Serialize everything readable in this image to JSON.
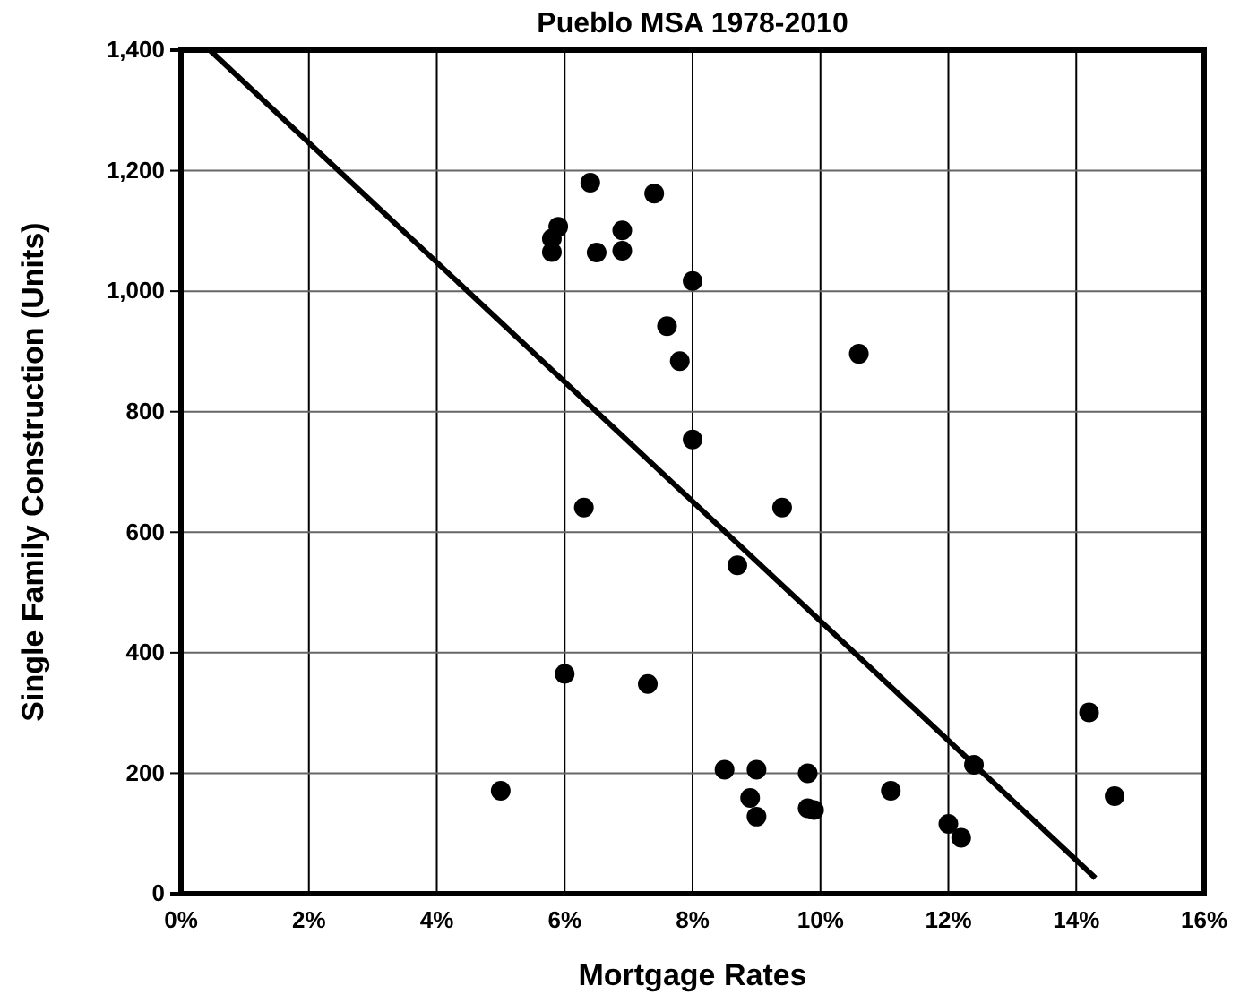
{
  "chart_data": {
    "type": "scatter",
    "title": "Pueblo MSA 1978-2010",
    "xlabel": "Mortgage Rates",
    "ylabel": "Single Family Construction (Units)",
    "xlim": [
      0,
      16
    ],
    "ylim": [
      0,
      1400
    ],
    "xticks": [
      {
        "value": 0,
        "label": "0%"
      },
      {
        "value": 2,
        "label": "2%"
      },
      {
        "value": 4,
        "label": "4%"
      },
      {
        "value": 6,
        "label": "6%"
      },
      {
        "value": 8,
        "label": "8%"
      },
      {
        "value": 10,
        "label": "10%"
      },
      {
        "value": 12,
        "label": "12%"
      },
      {
        "value": 14,
        "label": "14%"
      },
      {
        "value": 16,
        "label": "16%"
      }
    ],
    "yticks": [
      0,
      200,
      400,
      600,
      800,
      {
        "value": 1000,
        "label": "1,000"
      },
      {
        "value": 1200,
        "label": "1,200"
      },
      {
        "value": 1400,
        "label": "1,400"
      }
    ],
    "grid": true,
    "marker": "circle",
    "series": [
      {
        "color": "#000000",
        "x": [
          5.8,
          5.8,
          5.9,
          6.4,
          7.4,
          6.9,
          6.9,
          6.5,
          8.0,
          7.6,
          7.8,
          10.6,
          8.0,
          6.3,
          9.4,
          8.7,
          6.0,
          7.3,
          8.5,
          9.0,
          9.8,
          8.9,
          9.0,
          9.8,
          9.9,
          11.1,
          12.4,
          12.0,
          12.2,
          5.0,
          14.2,
          14.6
        ],
        "values": [
          1065,
          1087,
          1107,
          1180,
          1162,
          1101,
          1067,
          1064,
          1017,
          942,
          884,
          896,
          754,
          641,
          641,
          545,
          365,
          348,
          206,
          206,
          200,
          159,
          128,
          142,
          139,
          171,
          214,
          116,
          93,
          171,
          301,
          162
        ]
      },
      {
        "type": "line",
        "color": "#000000",
        "marker": "none",
        "x": [
          0.45,
          14.3
        ],
        "values": [
          1400,
          26
        ]
      }
    ]
  }
}
